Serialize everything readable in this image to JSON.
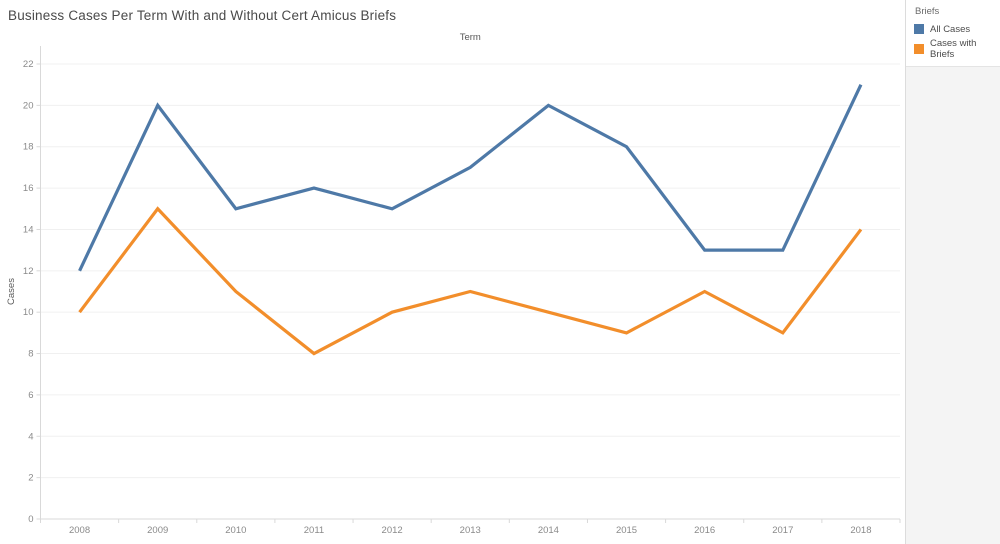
{
  "title": "Business Cases Per Term With and Without Cert Amicus Briefs",
  "axes": {
    "x_title": "Term",
    "y_title": "Cases"
  },
  "legend": {
    "title": "Briefs",
    "items": [
      {
        "label": "All Cases",
        "color": "#4e79a7"
      },
      {
        "label": "Cases with Briefs",
        "color": "#f28e2b"
      }
    ]
  },
  "chart_data": {
    "type": "line",
    "title": "Business Cases Per Term With and Without Cert Amicus Briefs",
    "xlabel": "Term",
    "ylabel": "Cases",
    "categories": [
      "2008",
      "2009",
      "2010",
      "2011",
      "2012",
      "2013",
      "2014",
      "2015",
      "2016",
      "2017",
      "2018"
    ],
    "series": [
      {
        "name": "All Cases",
        "color": "#4e79a7",
        "values": [
          12,
          20,
          15,
          16,
          15,
          17,
          20,
          18,
          13,
          13,
          21
        ]
      },
      {
        "name": "Cases with Briefs",
        "color": "#f28e2b",
        "values": [
          10,
          15,
          11,
          8,
          10,
          11,
          10,
          9,
          11,
          9,
          14
        ]
      }
    ],
    "ylim": [
      0,
      22
    ],
    "ytick_step": 2,
    "grid": "horizontal",
    "legend_position": "top-right"
  },
  "colors": {
    "grid": "#f0f0f0",
    "axis": "#d9d9d9",
    "tick_label": "#8a8a8a",
    "axis_title": "#585858",
    "title_text": "#4a4a4a"
  }
}
